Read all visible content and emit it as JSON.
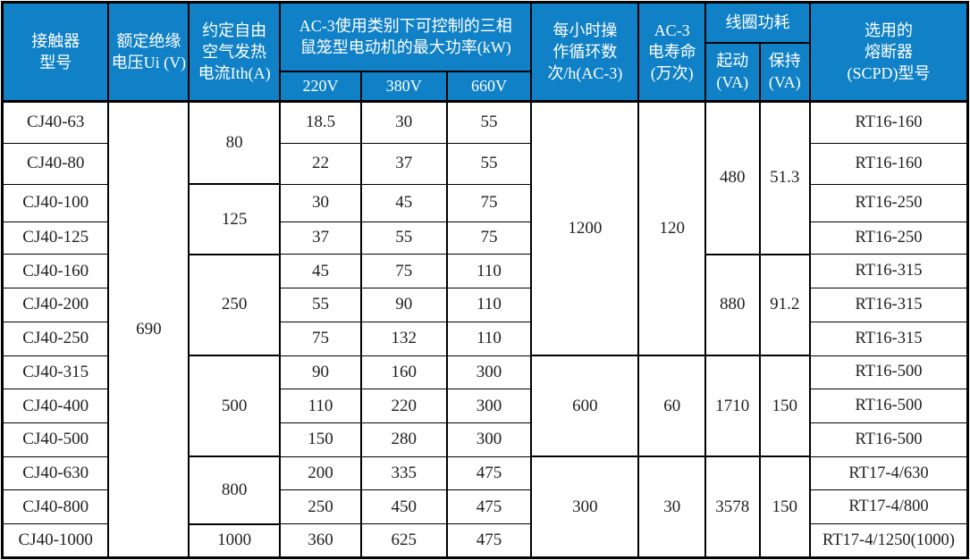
{
  "colors": {
    "header_background": "#1081C6",
    "header_text": "#FFFFFF",
    "border": "#000000",
    "body_text": "#1F1F1F"
  },
  "table": {
    "header": {
      "model": "接触器\n型号",
      "ui": "额定绝缘\n电压Ui (V)",
      "ith": "约定自由\n空气发热\n电流Ith(A)",
      "power_group": "AC-3使用类别下可控制的三相\n鼠笼型电动机的最大功率(kW)",
      "v220": "220V",
      "v380": "380V",
      "v660": "660V",
      "ops": "每小时操\n作循环数\n次/h(AC-3)",
      "life": "AC-3\n电寿命\n(万次)",
      "coil_group": "线圈功耗",
      "start": "起动\n(VA)",
      "hold": "保持\n(VA)",
      "fuse": "选用的\n熔断器\n(SCPD)型号"
    },
    "columns": [
      "model",
      "ui",
      "ith",
      "p220",
      "p380",
      "p660",
      "ops",
      "life",
      "start",
      "hold",
      "fuse"
    ],
    "rows": [
      {
        "model": "CJ40-63",
        "ui": {
          "text": "690",
          "rowspan": 13
        },
        "ith": {
          "text": "80",
          "rowspan": 2
        },
        "p220": "18.5",
        "p380": "30",
        "p660": "55",
        "ops": {
          "text": "1200",
          "rowspan": 7
        },
        "life": {
          "text": "120",
          "rowspan": 7
        },
        "start": {
          "text": "480",
          "rowspan": 4
        },
        "hold": {
          "text": "51.3",
          "rowspan": 4
        },
        "fuse": "RT16-160"
      },
      {
        "model": "CJ40-80",
        "p220": "22",
        "p380": "37",
        "p660": "55",
        "fuse": "RT16-160"
      },
      {
        "model": "CJ40-100",
        "ith": {
          "text": "125",
          "rowspan": 2
        },
        "p220": "30",
        "p380": "45",
        "p660": "75",
        "fuse": "RT16-250"
      },
      {
        "model": "CJ40-125",
        "p220": "37",
        "p380": "55",
        "p660": "75",
        "fuse": "RT16-250"
      },
      {
        "model": "CJ40-160",
        "ith": {
          "text": "250",
          "rowspan": 3
        },
        "p220": "45",
        "p380": "75",
        "p660": "110",
        "start": {
          "text": "880",
          "rowspan": 3
        },
        "hold": {
          "text": "91.2",
          "rowspan": 3
        },
        "fuse": "RT16-315"
      },
      {
        "model": "CJ40-200",
        "p220": "55",
        "p380": "90",
        "p660": "110",
        "fuse": "RT16-315"
      },
      {
        "model": "CJ40-250",
        "p220": "75",
        "p380": "132",
        "p660": "110",
        "fuse": "RT16-315"
      },
      {
        "model": "CJ40-315",
        "ith": {
          "text": "500",
          "rowspan": 3
        },
        "p220": "90",
        "p380": "160",
        "p660": "300",
        "ops": {
          "text": "600",
          "rowspan": 3
        },
        "life": {
          "text": "60",
          "rowspan": 3
        },
        "start": {
          "text": "1710",
          "rowspan": 3
        },
        "hold": {
          "text": "150",
          "rowspan": 3
        },
        "fuse": "RT16-500"
      },
      {
        "model": "CJ40-400",
        "p220": "110",
        "p380": "220",
        "p660": "300",
        "fuse": "RT16-500"
      },
      {
        "model": "CJ40-500",
        "p220": "150",
        "p380": "280",
        "p660": "300",
        "fuse": "RT16-500"
      },
      {
        "model": "CJ40-630",
        "ith": {
          "text": "800",
          "rowspan": 2
        },
        "p220": "200",
        "p380": "335",
        "p660": "475",
        "ops": {
          "text": "300",
          "rowspan": 3
        },
        "life": {
          "text": "30",
          "rowspan": 3
        },
        "start": {
          "text": "3578",
          "rowspan": 3
        },
        "hold": {
          "text": "150",
          "rowspan": 3
        },
        "fuse": "RT17-4/630"
      },
      {
        "model": "CJ40-800",
        "p220": "250",
        "p380": "450",
        "p660": "475",
        "fuse": "RT17-4/800"
      },
      {
        "model": "CJ40-1000",
        "ith": "1000",
        "p220": "360",
        "p380": "625",
        "p660": "475",
        "fuse": "RT17-4/1250(1000)"
      }
    ]
  }
}
